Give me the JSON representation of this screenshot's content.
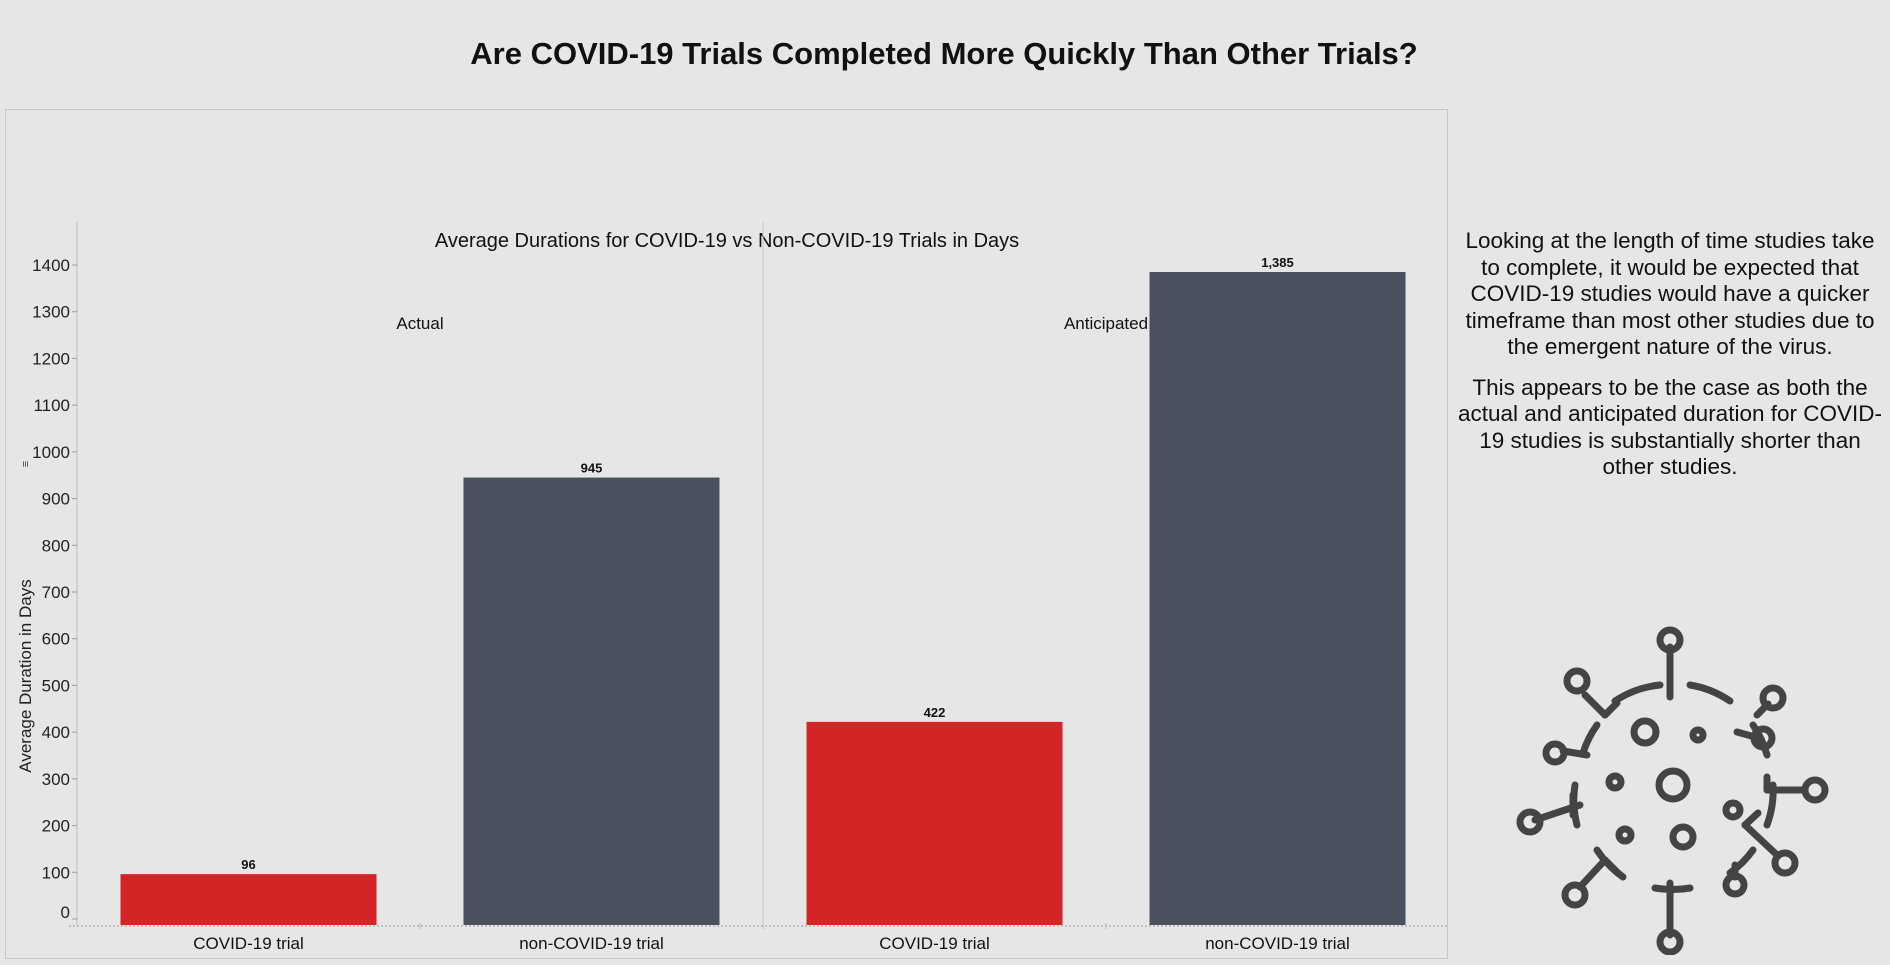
{
  "title": "Are COVID-19 Trials Completed More Quickly Than Other Trials?",
  "chart_data": {
    "type": "bar",
    "title": "Average Durations for COVID-19 vs Non-COVID-19 Trials in Days",
    "ylabel": "Average Duration in Days",
    "xlabel": "",
    "ylim": [
      0,
      1480
    ],
    "yticks": [
      0,
      100,
      200,
      300,
      400,
      500,
      600,
      700,
      800,
      900,
      1000,
      1100,
      1200,
      1300,
      1400
    ],
    "categories": [
      "COVID-19 trial",
      "non-COVID-19 trial"
    ],
    "panels": [
      {
        "name": "Actual",
        "values": [
          96,
          945
        ],
        "labels": [
          "96",
          "945"
        ]
      },
      {
        "name": "Anticipated",
        "values": [
          422,
          1385
        ],
        "labels": [
          "422",
          "1,385"
        ]
      }
    ],
    "colors": {
      "COVID-19 trial": "#d42426",
      "non-COVID-19 trial": "#4a505e"
    },
    "grid": false
  },
  "side_text": {
    "paragraph_1": "Looking at the length of time studies take to complete, it would be expected that COVID-19 studies would have a quicker timeframe than most other studies due to the emergent nature of the virus.",
    "paragraph_2": "This appears to be the case as both the actual and anticipated duration for COVID-19 studies is substantially shorter than other studies."
  },
  "icons": {
    "virus": "virus-icon",
    "sort": "sort-icon"
  }
}
